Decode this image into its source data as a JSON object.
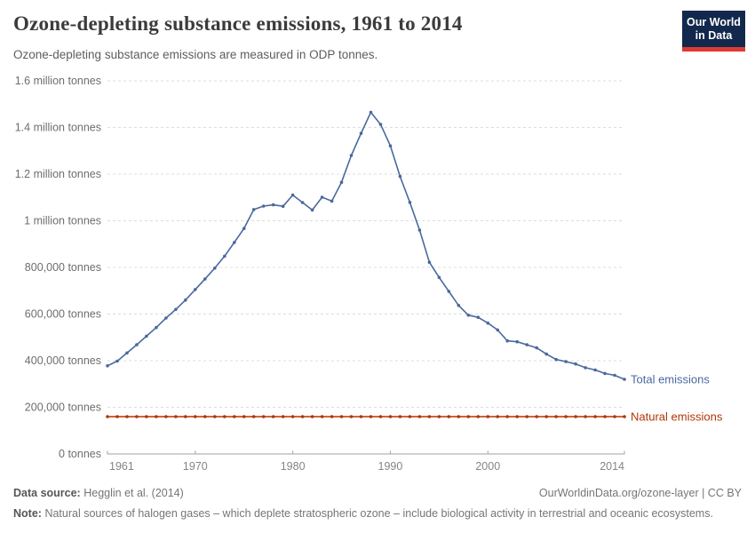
{
  "header": {
    "title": "Ozone-depleting substance emissions, 1961 to 2014",
    "subtitle": "Ozone-depleting substance emissions are measured in ODP tonnes.",
    "logo": {
      "line1": "Our World",
      "line2": "in Data",
      "bg_color": "#12294d",
      "stripe_color": "#dc3b33"
    }
  },
  "footer": {
    "source_label": "Data source:",
    "source_value": "Hegglin et al. (2014)",
    "link": "OurWorldinData.org/ozone-layer | CC BY",
    "note_label": "Note:",
    "note_value": "Natural sources of halogen gases – which deplete stratospheric ozone – include biological activity in terrestrial and oceanic ecosystems."
  },
  "chart_data": {
    "type": "line",
    "title": "Ozone-depleting substance emissions, 1961 to 2014",
    "xlabel": "",
    "ylabel": "ODP tonnes",
    "x": [
      1961,
      1962,
      1963,
      1964,
      1965,
      1966,
      1967,
      1968,
      1969,
      1970,
      1971,
      1972,
      1973,
      1974,
      1975,
      1976,
      1977,
      1978,
      1979,
      1980,
      1981,
      1982,
      1983,
      1984,
      1985,
      1986,
      1987,
      1988,
      1989,
      1990,
      1991,
      1992,
      1993,
      1994,
      1995,
      1996,
      1997,
      1998,
      1999,
      2000,
      2001,
      2002,
      2003,
      2004,
      2005,
      2006,
      2007,
      2008,
      2009,
      2010,
      2011,
      2012,
      2013,
      2014
    ],
    "series": [
      {
        "name": "Total emissions",
        "color": "#4a699e",
        "values": [
          378000,
          398000,
          433000,
          468000,
          505000,
          542000,
          583000,
          620000,
          660000,
          705000,
          750000,
          797000,
          848000,
          907000,
          967000,
          1048000,
          1063000,
          1068000,
          1062000,
          1110000,
          1078000,
          1046000,
          1101000,
          1084000,
          1165000,
          1280000,
          1375000,
          1465000,
          1413000,
          1321000,
          1190000,
          1079000,
          960000,
          822000,
          757000,
          697000,
          637000,
          595000,
          586000,
          561000,
          532000,
          485000,
          481000,
          468000,
          455000,
          428000,
          405000,
          396000,
          386000,
          370000,
          360000,
          345000,
          337000,
          320000
        ]
      },
      {
        "name": "Natural emissions",
        "color": "#b13507",
        "constant_value": 160000
      }
    ],
    "ylim": [
      0,
      1600000
    ],
    "yticks": [
      {
        "value": 0,
        "label": "0 tonnes"
      },
      {
        "value": 200000,
        "label": "200,000 tonnes"
      },
      {
        "value": 400000,
        "label": "400,000 tonnes"
      },
      {
        "value": 600000,
        "label": "600,000 tonnes"
      },
      {
        "value": 800000,
        "label": "800,000 tonnes"
      },
      {
        "value": 1000000,
        "label": "1 million tonnes"
      },
      {
        "value": 1200000,
        "label": "1.2 million tonnes"
      },
      {
        "value": 1400000,
        "label": "1.4 million tonnes"
      },
      {
        "value": 1600000,
        "label": "1.6 million tonnes"
      }
    ],
    "xticks": [
      1961,
      1970,
      1980,
      1990,
      2000,
      2014
    ],
    "grid": "horizontal-dashed",
    "legend": "line-end-labels"
  }
}
